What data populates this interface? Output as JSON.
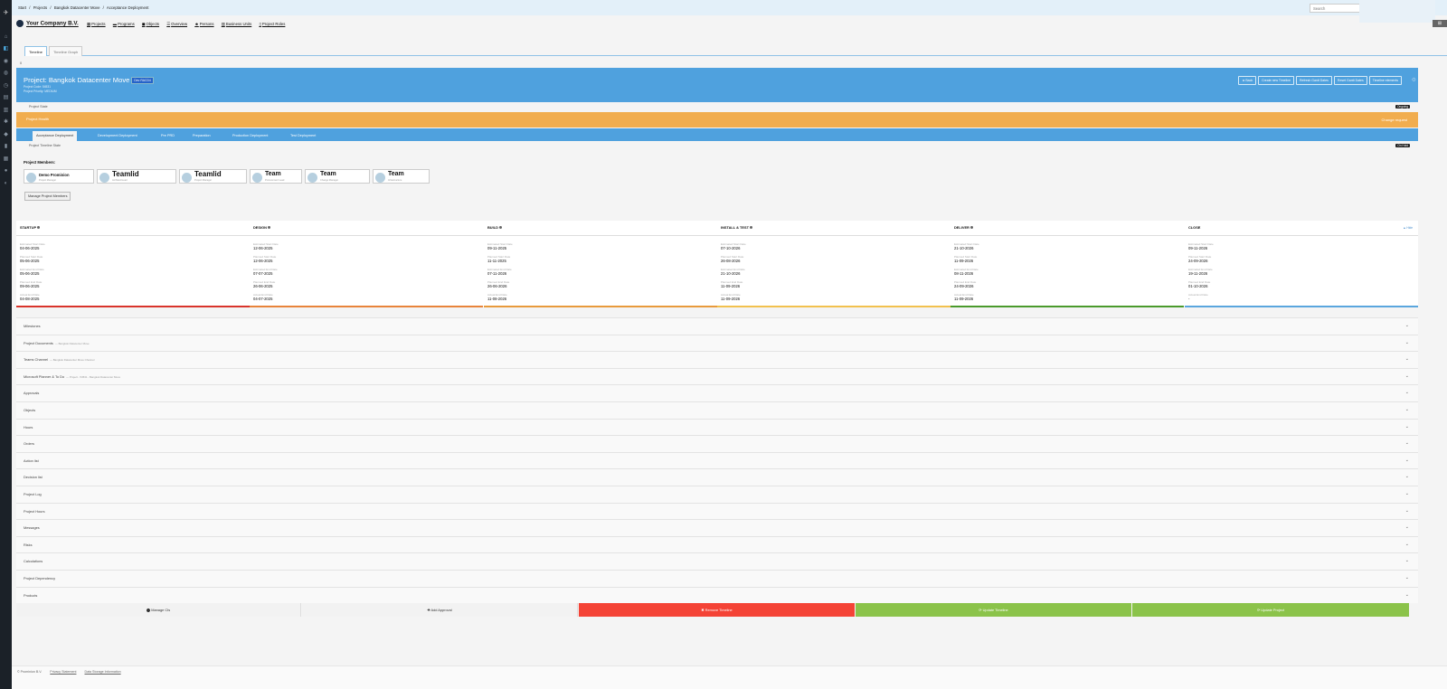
{
  "breadcrumb": [
    "Start",
    "/",
    "Projects",
    "/",
    "Bangkok Datacenter Move",
    "/",
    "Acceptance Deployment"
  ],
  "search": {
    "placeholder": "Search"
  },
  "header": {
    "company": "Your Company B.V.",
    "nav": [
      {
        "icon": "grid-icon",
        "label": "Projects"
      },
      {
        "icon": "briefcase-icon",
        "label": "Programs"
      },
      {
        "icon": "cube-icon",
        "label": "Objects"
      },
      {
        "icon": "list-icon",
        "label": "Overview"
      },
      {
        "icon": "users-icon",
        "label": "Persons"
      },
      {
        "icon": "building-icon",
        "label": "Business Units"
      },
      {
        "icon": "document-icon",
        "label": "Project Roles"
      }
    ],
    "right_button": "⊞"
  },
  "view_tabs": [
    "Timeline",
    "Timeline Graph"
  ],
  "small_marker": "0",
  "project": {
    "title": "Project: Bangkok Datacenter Move",
    "badge": "Dev RACD4",
    "code": "Project Code: 54531",
    "priority": "Project Priority: MEDIUM",
    "buttons": [
      "◄ Back",
      "Create new Timeline",
      "Refresh Gantt Dates",
      "Reset Gantt Dates",
      "Timeline elements"
    ]
  },
  "project_state": {
    "label": "Project State",
    "value": "Ongoing"
  },
  "project_health": {
    "label": "Project Health",
    "value": "Change request"
  },
  "timeline_tabs": [
    "Acceptance Deployment",
    "Development Deployment",
    "Pre PRD",
    "Preparation",
    "Production Deployment",
    "Test Deployment"
  ],
  "timeline_state": {
    "label": "Project Timeline State",
    "value": "On Hold"
  },
  "members": {
    "title": "Project Members:",
    "list": [
      {
        "name": "Demo Prominion",
        "role": "Project Manager"
      },
      {
        "name": "Teamlid",
        "role": "Architect/Lead"
      },
      {
        "name": "Teamlid",
        "role": "Project Manager"
      },
      {
        "name": "Team",
        "role": "Procurement Lead"
      },
      {
        "name": "Team",
        "role": "Change Manager"
      },
      {
        "name": "Team",
        "role": "Infrastructure"
      }
    ],
    "manage_label": "Manage Project Members"
  },
  "phases": {
    "hide_label": "▲ Hide",
    "columns": [
      {
        "name": "STARTUP",
        "color": "#d9342b",
        "fields": [
          {
            "label": "Estimated Start Date",
            "value": "04-06-2025"
          },
          {
            "label": "Planned Start Date",
            "value": "05-06-2025"
          },
          {
            "label": "Estimated End Date",
            "value": "05-06-2025"
          },
          {
            "label": "Planned End Date",
            "value": "09-06-2025"
          },
          {
            "label": "Actual End Date",
            "value": "04-08-2025"
          }
        ]
      },
      {
        "name": "DESIGN",
        "color": "#e8843a",
        "fields": [
          {
            "label": "Estimated Start Date",
            "value": "12-06-2025"
          },
          {
            "label": "Planned Start Date",
            "value": "12-06-2025"
          },
          {
            "label": "Estimated End Date",
            "value": "07-07-2025"
          },
          {
            "label": "Planned End Date",
            "value": "26-06-2025"
          },
          {
            "label": "Actual End Date",
            "value": "04-07-2025"
          }
        ]
      },
      {
        "name": "BUILD",
        "color": "#e89a3c",
        "fields": [
          {
            "label": "Estimated Start Date",
            "value": "09-11-2025"
          },
          {
            "label": "Planned Start Date",
            "value": "11-11-2025"
          },
          {
            "label": "Estimated End Date",
            "value": "07-11-2026"
          },
          {
            "label": "Planned End Date",
            "value": "26-06-2026"
          },
          {
            "label": "Actual End Date",
            "value": "11-08-2026"
          }
        ]
      },
      {
        "name": "INSTALL & TEST",
        "color": "#f2c14e",
        "fields": [
          {
            "label": "Estimated Start Date",
            "value": "07-10-2026"
          },
          {
            "label": "Planned Start Date",
            "value": "26-08-2026"
          },
          {
            "label": "Estimated End Date",
            "value": "21-10-2026"
          },
          {
            "label": "Planned End Date",
            "value": "11-09-2026"
          },
          {
            "label": "Actual End Date",
            "value": "11-09-2026"
          }
        ]
      },
      {
        "name": "DELIVER",
        "color": "#4a9a2c",
        "fields": [
          {
            "label": "Estimated Start Date",
            "value": "21-10-2026"
          },
          {
            "label": "Planned Start Date",
            "value": "11-09-2026"
          },
          {
            "label": "Estimated End Date",
            "value": "08-11-2026"
          },
          {
            "label": "Planned End Date",
            "value": "24-09-2026"
          },
          {
            "label": "Actual End Date",
            "value": "11-09-2026"
          }
        ]
      },
      {
        "name": "CLOSE",
        "color": "#5aa6de",
        "fields": [
          {
            "label": "Estimated Start Date",
            "value": "09-11-2026"
          },
          {
            "label": "Planned Start Date",
            "value": "24-09-2026"
          },
          {
            "label": "Estimated End Date",
            "value": "19-11-2026"
          },
          {
            "label": "Planned End Date",
            "value": "01-10-2026"
          },
          {
            "label": "Actual End Date",
            "value": "-"
          }
        ]
      }
    ]
  },
  "accordion": [
    {
      "title": "Milestones",
      "sub": ""
    },
    {
      "title": "Project Documents",
      "sub": "— Bangkok Datacenter Move"
    },
    {
      "title": "Teams Channel",
      "sub": "— Bangkok Datacenter Move Channel"
    },
    {
      "title": "Microsoft Planner & To Do",
      "sub": "— Project - 54531 - Bangkok Datacenter Move"
    },
    {
      "title": "Approvals",
      "sub": ""
    },
    {
      "title": "Objects",
      "sub": ""
    },
    {
      "title": "Hours",
      "sub": ""
    },
    {
      "title": "Orders",
      "sub": ""
    },
    {
      "title": "Action list",
      "sub": ""
    },
    {
      "title": "Decision list",
      "sub": ""
    },
    {
      "title": "Project Log",
      "sub": ""
    },
    {
      "title": "Project Hours",
      "sub": ""
    },
    {
      "title": "Messages",
      "sub": ""
    },
    {
      "title": "Risks",
      "sub": ""
    },
    {
      "title": "Calculations",
      "sub": ""
    },
    {
      "title": "Project Dependency",
      "sub": ""
    },
    {
      "title": "Products",
      "sub": ""
    }
  ],
  "actions": [
    {
      "label": "⬤ Manage CIs",
      "bg": "#f2f2f2",
      "color": "#333"
    },
    {
      "label": "✚ Add Approval",
      "bg": "#f2f2f2",
      "color": "#333"
    },
    {
      "label": "✖ Remove Timeline",
      "bg": "#f44336",
      "color": "#ffffff"
    },
    {
      "label": "⟳ Update Timeline",
      "bg": "#8bc34a",
      "color": "#ffffff"
    },
    {
      "label": "⟳ Update Project",
      "bg": "#8bc34a",
      "color": "#ffffff"
    }
  ],
  "footer": {
    "copyright": "© Prominion B.V.",
    "links": [
      "Privacy Statement",
      "Data Storage Information"
    ]
  }
}
